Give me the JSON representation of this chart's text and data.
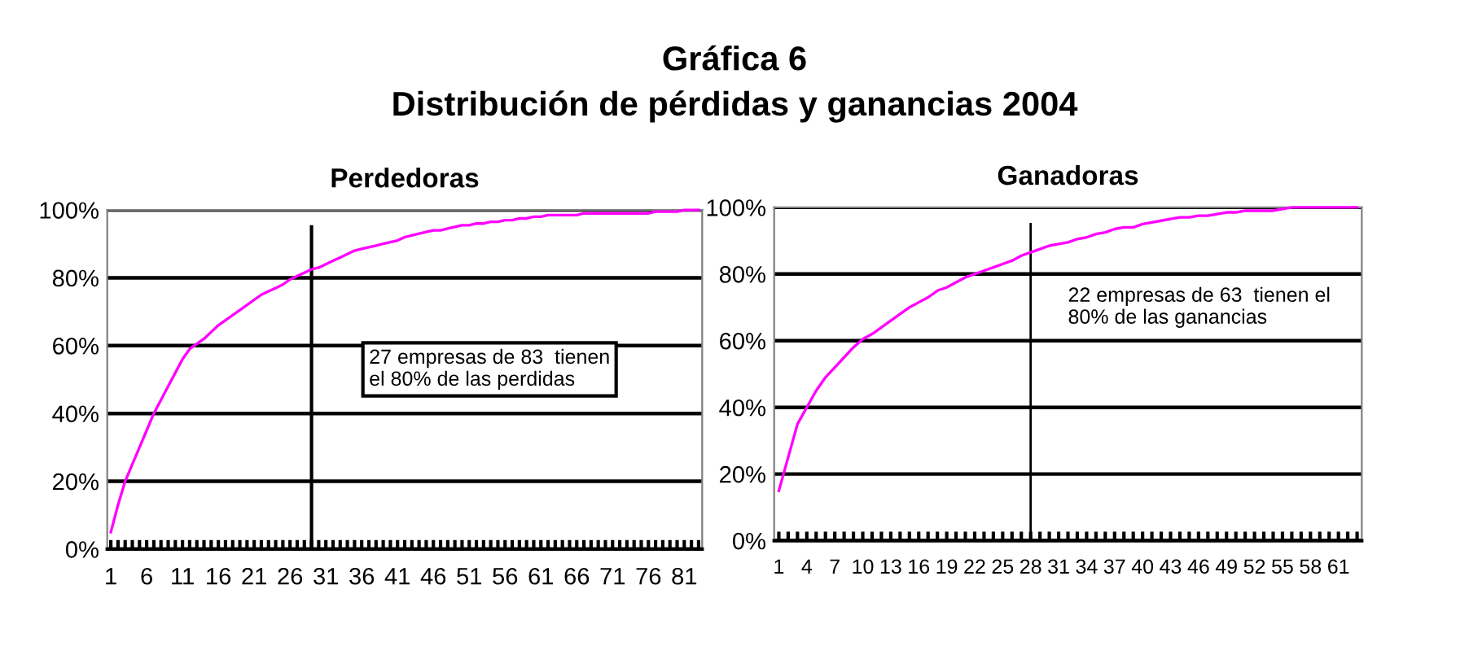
{
  "chart_data": [
    {
      "type": "other",
      "title": "Gráfica 6",
      "subtitle": "Distribución de pérdidas y ganancias 2004"
    },
    {
      "type": "line",
      "title": "Perdedoras",
      "x": [
        1,
        2,
        3,
        4,
        5,
        6,
        7,
        8,
        9,
        10,
        11,
        12,
        13,
        14,
        15,
        16,
        17,
        18,
        19,
        20,
        21,
        22,
        23,
        24,
        25,
        26,
        27,
        28,
        29,
        30,
        31,
        32,
        33,
        34,
        35,
        36,
        37,
        38,
        39,
        40,
        41,
        42,
        43,
        44,
        45,
        46,
        47,
        48,
        49,
        50,
        51,
        52,
        53,
        54,
        55,
        56,
        57,
        58,
        59,
        60,
        61,
        62,
        63,
        64,
        65,
        66,
        67,
        68,
        69,
        70,
        71,
        72,
        73,
        74,
        75,
        76,
        77,
        78,
        79,
        80,
        81,
        82,
        83
      ],
      "series": [
        {
          "color": "#ff00ff",
          "values": [
            5,
            13,
            20,
            25,
            30,
            35,
            40,
            44,
            48,
            52,
            56,
            59,
            60.5,
            62,
            64,
            66,
            67.5,
            69,
            70.5,
            72,
            73.5,
            75,
            76,
            77,
            78,
            79.5,
            80.5,
            81.5,
            82.5,
            83,
            84,
            85,
            86,
            87,
            88,
            88.5,
            89,
            89.5,
            90,
            90.5,
            91,
            92,
            92.5,
            93,
            93.5,
            94,
            94,
            94.5,
            95,
            95.5,
            95.5,
            96,
            96,
            96.5,
            96.5,
            97,
            97,
            97.5,
            97.5,
            98,
            98,
            98.5,
            98.5,
            98.5,
            98.5,
            98.5,
            99,
            99,
            99,
            99,
            99,
            99,
            99,
            99,
            99,
            99,
            99.5,
            99.5,
            99.5,
            99.5,
            100,
            100,
            100
          ]
        }
      ],
      "xlim": [
        0.5,
        83.5
      ],
      "xticks": [
        1,
        6,
        11,
        16,
        21,
        26,
        31,
        36,
        41,
        46,
        51,
        56,
        61,
        66,
        71,
        76,
        81
      ],
      "ylim": [
        0,
        100
      ],
      "yticks": [
        {
          "value": 0,
          "label": "0%"
        },
        {
          "value": 20,
          "label": "20%"
        },
        {
          "value": 40,
          "label": "40%"
        },
        {
          "value": 60,
          "label": "60%"
        },
        {
          "value": 80,
          "label": "80%"
        },
        {
          "value": 100,
          "label": "100%"
        }
      ],
      "grid": "y",
      "marker": "none",
      "line_style": "solid",
      "legend": false,
      "ref_lines": [
        {
          "axis": "x",
          "value": 29,
          "color": "#000000"
        }
      ],
      "annotations": [
        "27 empresas de 83  tienen\nel 80% de las perdidas"
      ]
    },
    {
      "type": "line",
      "title": "Ganadoras",
      "x": [
        1,
        2,
        3,
        4,
        5,
        6,
        7,
        8,
        9,
        10,
        11,
        12,
        13,
        14,
        15,
        16,
        17,
        18,
        19,
        20,
        21,
        22,
        23,
        24,
        25,
        26,
        27,
        28,
        29,
        30,
        31,
        32,
        33,
        34,
        35,
        36,
        37,
        38,
        39,
        40,
        41,
        42,
        43,
        44,
        45,
        46,
        47,
        48,
        49,
        50,
        51,
        52,
        53,
        54,
        55,
        56,
        57,
        58,
        59,
        60,
        61,
        62,
        63
      ],
      "series": [
        {
          "color": "#ff00ff",
          "values": [
            15,
            25,
            35,
            40,
            45,
            49,
            52,
            55,
            58,
            60.5,
            62,
            64,
            66,
            68,
            70,
            71.5,
            73,
            75,
            76,
            77.5,
            79,
            80,
            81,
            82,
            83,
            84,
            85.5,
            86.5,
            87.5,
            88.5,
            89,
            89.5,
            90.5,
            91,
            92,
            92.5,
            93.5,
            94,
            94,
            95,
            95.5,
            96,
            96.5,
            97,
            97,
            97.5,
            97.5,
            98,
            98.5,
            98.5,
            99,
            99,
            99,
            99,
            99.5,
            100,
            100,
            100,
            100,
            100,
            100,
            100,
            100
          ]
        }
      ],
      "xlim": [
        0.5,
        63.5
      ],
      "xticks": [
        1,
        4,
        7,
        10,
        13,
        16,
        19,
        22,
        25,
        28,
        31,
        34,
        37,
        40,
        43,
        46,
        49,
        52,
        55,
        58,
        61
      ],
      "ylim": [
        0,
        100
      ],
      "yticks": [
        {
          "value": 0,
          "label": "0%"
        },
        {
          "value": 20,
          "label": "20%"
        },
        {
          "value": 40,
          "label": "40%"
        },
        {
          "value": 60,
          "label": "60%"
        },
        {
          "value": 80,
          "label": "80%"
        },
        {
          "value": 100,
          "label": "100%"
        }
      ],
      "grid": "y",
      "marker": "none",
      "line_style": "solid",
      "legend": false,
      "ref_lines": [
        {
          "axis": "x",
          "value": 28,
          "color": "#000000"
        }
      ],
      "annotations": [
        "22 empresas de 63  tienen el\n80% de las ganancias"
      ]
    }
  ]
}
